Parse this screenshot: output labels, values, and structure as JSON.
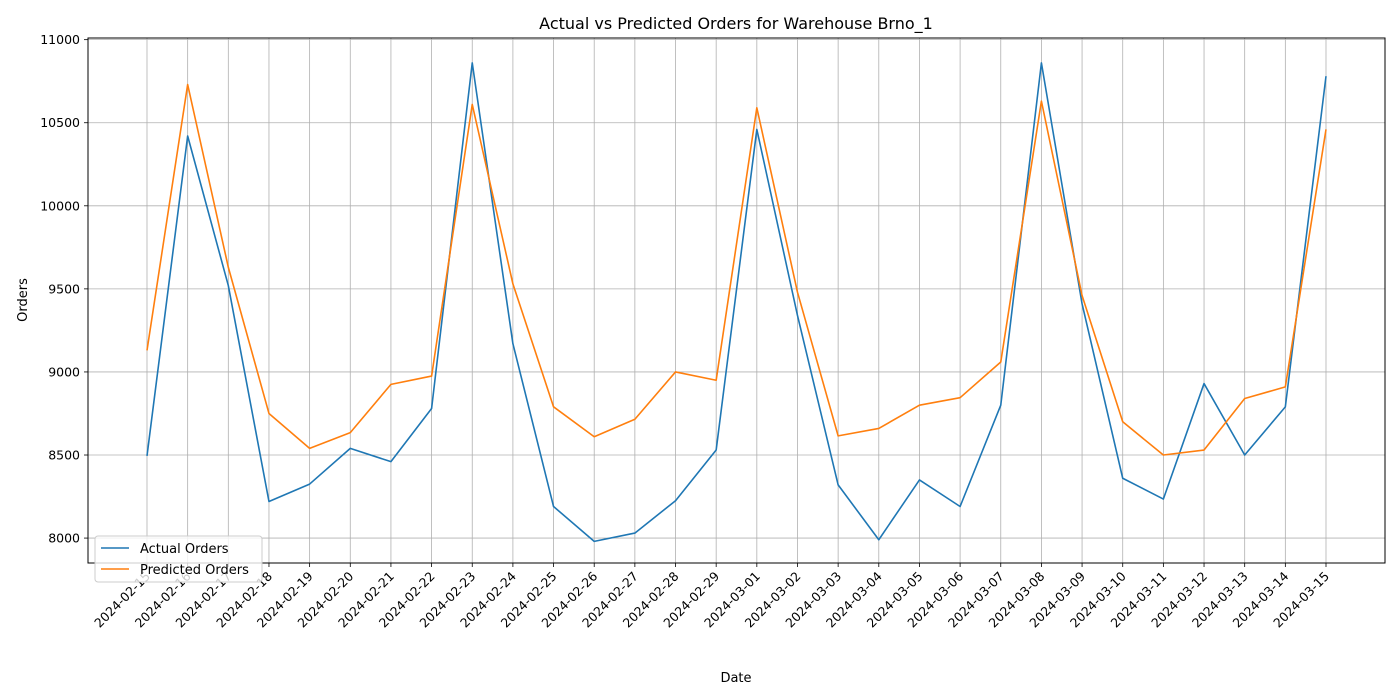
{
  "chart_data": {
    "type": "line",
    "title": "Actual vs Predicted Orders for Warehouse Brno_1",
    "xlabel": "Date",
    "ylabel": "Orders",
    "ylim": [
      7850,
      11010
    ],
    "yticks": [
      8000,
      8500,
      9000,
      9500,
      10000,
      10500,
      11000
    ],
    "grid": true,
    "legend": "lower-left",
    "x": [
      "2024-02-15",
      "2024-02-16",
      "2024-02-17",
      "2024-02-18",
      "2024-02-19",
      "2024-02-20",
      "2024-02-21",
      "2024-02-22",
      "2024-02-23",
      "2024-02-24",
      "2024-02-25",
      "2024-02-26",
      "2024-02-27",
      "2024-02-28",
      "2024-02-29",
      "2024-03-01",
      "2024-03-02",
      "2024-03-03",
      "2024-03-04",
      "2024-03-05",
      "2024-03-06",
      "2024-03-07",
      "2024-03-08",
      "2024-03-09",
      "2024-03-10",
      "2024-03-11",
      "2024-03-12",
      "2024-03-13",
      "2024-03-14",
      "2024-03-15"
    ],
    "series": [
      {
        "name": "Actual Orders",
        "color": "#1f77b4",
        "values": [
          8495,
          10420,
          9520,
          8220,
          8325,
          8540,
          8460,
          8780,
          10860,
          9170,
          8190,
          7980,
          8030,
          8225,
          8530,
          10460,
          9340,
          8320,
          7990,
          8350,
          8190,
          8800,
          10860,
          9410,
          8360,
          8235,
          8930,
          8500,
          8790,
          10780
        ]
      },
      {
        "name": "Predicted Orders",
        "color": "#ff7f0e",
        "values": [
          9130,
          10730,
          9630,
          8750,
          8540,
          8635,
          8925,
          8975,
          10610,
          9530,
          8790,
          8610,
          8715,
          9000,
          8950,
          10590,
          9480,
          8615,
          8660,
          8800,
          8845,
          9060,
          10630,
          9460,
          8700,
          8500,
          8530,
          8840,
          8910,
          10460
        ]
      }
    ]
  }
}
